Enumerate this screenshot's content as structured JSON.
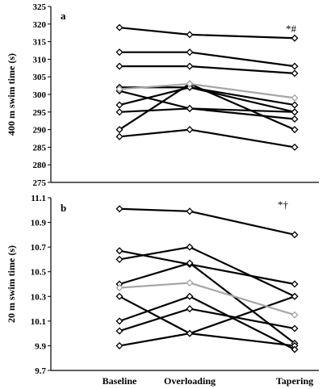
{
  "chart_data": [
    {
      "type": "line",
      "panel_label": "a",
      "ylabel": "400 m swim time (s)",
      "categories": [
        "Baseline",
        "Overloading",
        "Tapering"
      ],
      "ylim": [
        275,
        325
      ],
      "yticks": [
        "275",
        "280",
        "285",
        "290",
        "295",
        "300",
        "305",
        "310",
        "315",
        "320",
        "325"
      ],
      "annotation": "*#",
      "series": [
        {
          "values": [
            319,
            317,
            316
          ],
          "color": "#000000"
        },
        {
          "values": [
            312,
            312,
            308
          ],
          "color": "#000000"
        },
        {
          "values": [
            308,
            308,
            306
          ],
          "color": "#000000"
        },
        {
          "values": [
            302,
            302,
            295
          ],
          "color": "#000000"
        },
        {
          "values": [
            297,
            302,
            297
          ],
          "color": "#000000"
        },
        {
          "values": [
            295,
            296,
            295
          ],
          "color": "#000000"
        },
        {
          "values": [
            290,
            303,
            290
          ],
          "color": "#000000"
        },
        {
          "values": [
            288,
            290,
            285
          ],
          "color": "#000000"
        },
        {
          "values": [
            301,
            296,
            293
          ],
          "color": "#000000"
        },
        {
          "values": [
            301.5,
            303,
            299
          ],
          "color": "#a6a6a6"
        }
      ]
    },
    {
      "type": "line",
      "panel_label": "b",
      "ylabel": "20 m swim time (s)",
      "categories": [
        "Baseline",
        "Overloading",
        "Tapering"
      ],
      "ylim": [
        9.7,
        11.1
      ],
      "yticks": [
        "9.7",
        "9.9",
        "10.1",
        "10.3",
        "10.5",
        "10.7",
        "10.9",
        "11.1"
      ],
      "annotation": "*†",
      "series": [
        {
          "values": [
            11.01,
            10.99,
            10.8
          ],
          "color": "#000000"
        },
        {
          "values": [
            10.67,
            10.56,
            10.4
          ],
          "color": "#000000"
        },
        {
          "values": [
            10.6,
            10.7,
            10.3
          ],
          "color": "#000000"
        },
        {
          "values": [
            10.4,
            10.57,
            9.92
          ],
          "color": "#000000"
        },
        {
          "values": [
            10.3,
            10.0,
            9.9
          ],
          "color": "#000000"
        },
        {
          "values": [
            10.1,
            10.3,
            9.87
          ],
          "color": "#000000"
        },
        {
          "values": [
            10.02,
            10.2,
            10.04
          ],
          "color": "#000000"
        },
        {
          "values": [
            9.9,
            10.0,
            10.3
          ],
          "color": "#000000"
        },
        {
          "values": [
            10.37,
            10.41,
            10.15
          ],
          "color": "#a6a6a6"
        }
      ]
    }
  ]
}
